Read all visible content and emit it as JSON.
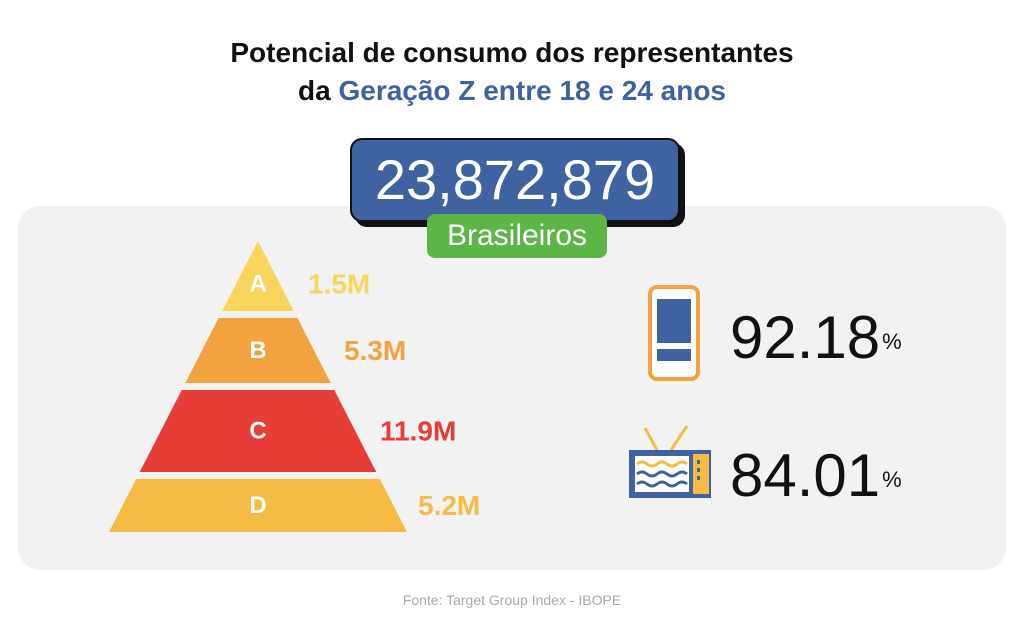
{
  "title": {
    "line1": "Potencial de consumo dos representantes",
    "line2_prefix": "da ",
    "line2_highlight": "Geração Z entre 18 e 24 anos"
  },
  "total": {
    "value": "23,872,879",
    "label": "Brasileiros"
  },
  "chart_data": {
    "type": "pyramid",
    "categories": [
      "A",
      "B",
      "C",
      "D"
    ],
    "values": [
      1.5,
      5.3,
      11.9,
      5.2
    ],
    "value_labels": [
      "1.5M",
      "5.3M",
      "11.9M",
      "5.2M"
    ],
    "colors": [
      "#f8d65c",
      "#f2a23e",
      "#e63e36",
      "#f6bb45"
    ]
  },
  "stats": [
    {
      "icon": "smartphone-icon",
      "value": "92.18",
      "unit": "%"
    },
    {
      "icon": "tv-icon",
      "value": "84.01",
      "unit": "%"
    }
  ],
  "colors": {
    "accent": "#3f63a0",
    "badge": "#5bb645",
    "panel": "#f2f2f2"
  },
  "source": "Fonte: Target Group Index - IBOPE"
}
